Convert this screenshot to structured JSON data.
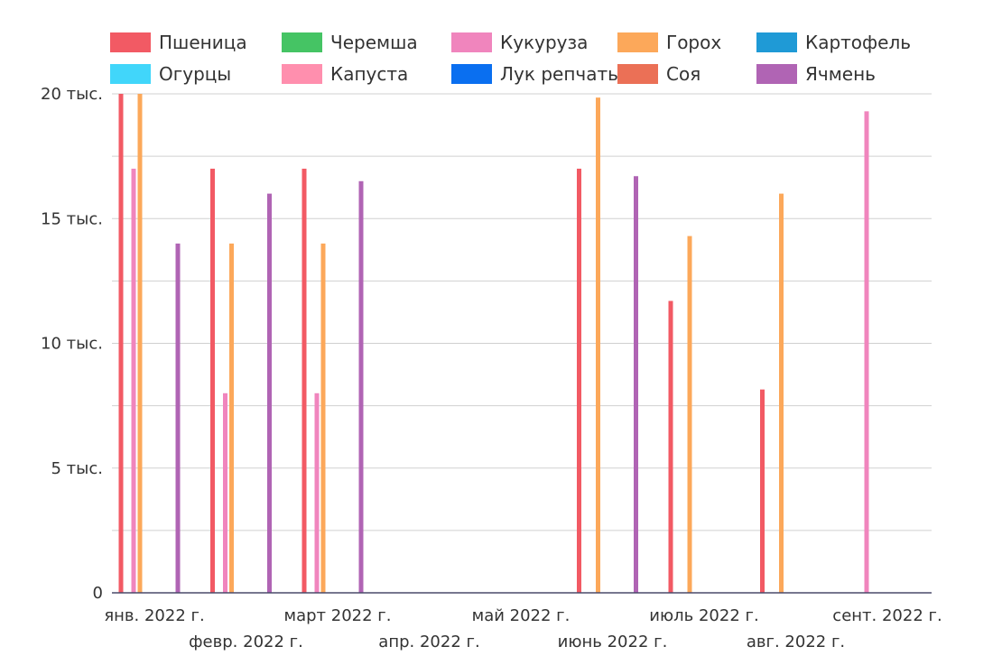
{
  "chart_data": {
    "type": "bar",
    "title": "",
    "xlabel": "",
    "ylabel": "",
    "ylim": [
      0,
      20000
    ],
    "grid": true,
    "legend_position": "top",
    "y_ticks": [
      {
        "value": 0,
        "label": "0"
      },
      {
        "value": 5000,
        "label": "5 тыс."
      },
      {
        "value": 10000,
        "label": "10 тыс."
      },
      {
        "value": 15000,
        "label": "15 тыс."
      },
      {
        "value": 20000,
        "label": "20 тыс."
      }
    ],
    "categories": [
      "янв. 2022 г.",
      "февр. 2022 г.",
      "март 2022 г.",
      "апр. 2022 г.",
      "май 2022 г.",
      "июнь 2022 г.",
      "июль 2022 г.",
      "авг. 2022 г.",
      "сент. 2022 г."
    ],
    "series": [
      {
        "name": "Пшеница",
        "color": "#f25a64",
        "values": [
          20000,
          17000,
          17000,
          null,
          null,
          17000,
          11700,
          8150,
          null
        ]
      },
      {
        "name": "Черемша",
        "color": "#45c464",
        "values": [
          null,
          null,
          null,
          null,
          null,
          null,
          null,
          null,
          null
        ]
      },
      {
        "name": "Кукуруза",
        "color": "#f085bd",
        "values": [
          17000,
          8000,
          8000,
          null,
          null,
          null,
          null,
          null,
          19300
        ]
      },
      {
        "name": "Горох",
        "color": "#fca85a",
        "values": [
          20000,
          14000,
          14000,
          null,
          null,
          19850,
          14300,
          16000,
          null
        ]
      },
      {
        "name": "Картофель",
        "color": "#1f9ad6",
        "values": [
          null,
          null,
          null,
          null,
          null,
          null,
          null,
          null,
          null
        ]
      },
      {
        "name": "Огурцы",
        "color": "#41d6fa",
        "values": [
          null,
          null,
          null,
          null,
          null,
          null,
          null,
          null,
          null
        ]
      },
      {
        "name": "Капуста",
        "color": "#ff8fae",
        "values": [
          null,
          null,
          null,
          null,
          null,
          null,
          null,
          null,
          null
        ]
      },
      {
        "name": "Лук репчатый",
        "color": "#0a6ff0",
        "values": [
          null,
          null,
          null,
          null,
          null,
          null,
          null,
          null,
          null
        ]
      },
      {
        "name": "Соя",
        "color": "#eb7056",
        "values": [
          null,
          null,
          null,
          null,
          null,
          null,
          null,
          null,
          null
        ]
      },
      {
        "name": "Ячмень",
        "color": "#b064b4",
        "values": [
          14000,
          16000,
          16500,
          null,
          null,
          16700,
          null,
          null,
          null
        ]
      }
    ]
  }
}
